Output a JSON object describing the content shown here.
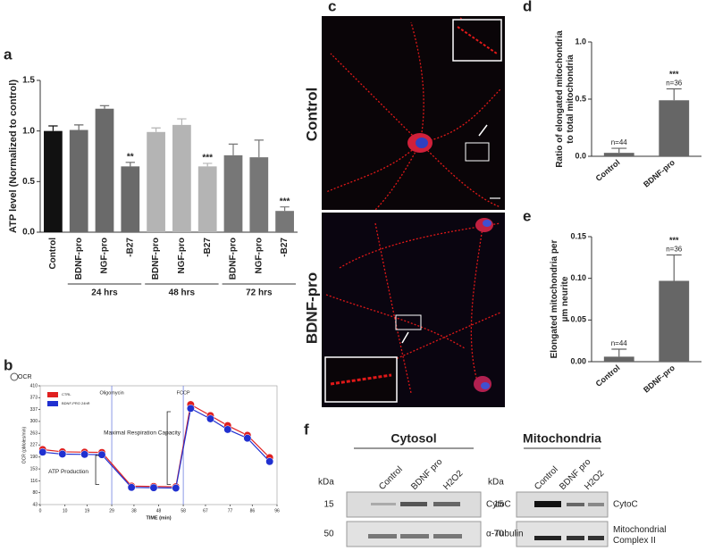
{
  "chart_data": [
    {
      "type": "bar",
      "panel": "a",
      "ylabel": "ATP level (Normalized to control)",
      "categories": [
        "Control",
        "BDNF-pro",
        "NGF-pro",
        "-B27",
        "BDNF-pro",
        "NGF-pro",
        "-B27",
        "BDNF-pro",
        "NGF-pro",
        "-B27"
      ],
      "values": [
        1.0,
        1.01,
        1.22,
        0.65,
        0.99,
        1.06,
        0.65,
        0.76,
        0.74,
        0.21
      ],
      "errors": [
        0.05,
        0.05,
        0.03,
        0.04,
        0.04,
        0.06,
        0.03,
        0.11,
        0.17,
        0.04
      ],
      "colors": [
        "#111111",
        "#6a6a6a",
        "#6a6a6a",
        "#6a6a6a",
        "#b4b4b4",
        "#b4b4b4",
        "#b4b4b4",
        "#777777",
        "#777777",
        "#777777"
      ],
      "significance": [
        null,
        null,
        null,
        "**",
        null,
        null,
        "***",
        null,
        null,
        "***"
      ],
      "groups": [
        "24 hrs",
        "48 hrs",
        "72 hrs"
      ],
      "ylim": [
        0,
        1.5
      ],
      "yticks": [
        {
          "value": 0,
          "label": "0.0"
        },
        0.5,
        {
          "value": 1,
          "label": "1.0"
        },
        1.5
      ]
    },
    {
      "type": "line",
      "panel": "b",
      "corner_label": "OCR",
      "xlabel": "TIME (min)",
      "ylabel": "OCR (pMoles/min)",
      "x": [
        1,
        9,
        18,
        25,
        37,
        46,
        55,
        61,
        69,
        76,
        84,
        93
      ],
      "series": [
        {
          "name": "CTRL",
          "color": "#e02020",
          "values": [
            213,
            206,
            205,
            204,
            100,
            99,
            98,
            352,
            318,
            287,
            257,
            188
          ]
        },
        {
          "name": "BDNF-PRO 24hR",
          "color": "#2030d0",
          "values": [
            205,
            199,
            198,
            197,
            96,
            95,
            94,
            340,
            308,
            275,
            248,
            176
          ]
        }
      ],
      "vlines": [
        {
          "x": 29,
          "label": "Oligomycin"
        },
        {
          "x": 58,
          "label": "FCCP"
        }
      ],
      "annotations": [
        "Maximal Respiration Capacity",
        "ATP Production"
      ],
      "xlim": [
        0,
        96
      ],
      "xticks": [
        0,
        10,
        19,
        29,
        38,
        48,
        58,
        67,
        77,
        86,
        96
      ],
      "ylim": [
        43,
        410
      ],
      "yticks": [
        43,
        80,
        116,
        153,
        190,
        227,
        263,
        300,
        337,
        373,
        410
      ]
    },
    {
      "type": "bar",
      "panel": "d",
      "ylabel": "Ratio of elongated mitochondria to total mitochondria",
      "categories": [
        "Control",
        "BDNF-pro"
      ],
      "values": [
        0.03,
        0.49
      ],
      "errors": [
        0.04,
        0.1
      ],
      "colors": [
        "#666666",
        "#666666"
      ],
      "significance": [
        null,
        "***"
      ],
      "n_labels": [
        "n=44",
        "n=36"
      ],
      "ylim": [
        0,
        1
      ],
      "yticks": [
        {
          "value": 0,
          "label": "0.0"
        },
        0.5,
        {
          "value": 1,
          "label": "1.0"
        }
      ]
    },
    {
      "type": "bar",
      "panel": "e",
      "ylabel": "Elongated mitochondria per µm neurite",
      "categories": [
        "Control",
        "BDNF-pro"
      ],
      "values": [
        0.006,
        0.097
      ],
      "errors": [
        0.009,
        0.031
      ],
      "colors": [
        "#666666",
        "#666666"
      ],
      "significance": [
        null,
        "***"
      ],
      "n_labels": [
        "n=44",
        "n=36"
      ],
      "ylim": [
        0,
        0.15
      ],
      "yticks": [
        {
          "value": 0,
          "label": "0.00"
        },
        0.05,
        {
          "value": 0.1,
          "label": "0.10"
        },
        0.15
      ]
    }
  ],
  "figure": {
    "c": {
      "label": "c",
      "rows": [
        "Control",
        "BDNF-pro"
      ]
    },
    "f": {
      "label": "f",
      "kda": "kDa",
      "blots": [
        {
          "title": "Cytosol",
          "lanes": [
            "Control",
            "BDNF pro",
            "H2O2"
          ],
          "bands": [
            {
              "mw": "15",
              "name": "CytoC"
            },
            {
              "mw": "50",
              "name": "α-Tubulin"
            }
          ]
        },
        {
          "title": "Mitochondria",
          "lanes": [
            "Control",
            "BDNF pro",
            "H2O2"
          ],
          "bands": [
            {
              "mw": "15",
              "name": "CytoC"
            },
            {
              "mw": "70",
              "name": "Mitochondrial Complex II"
            }
          ]
        }
      ]
    }
  }
}
